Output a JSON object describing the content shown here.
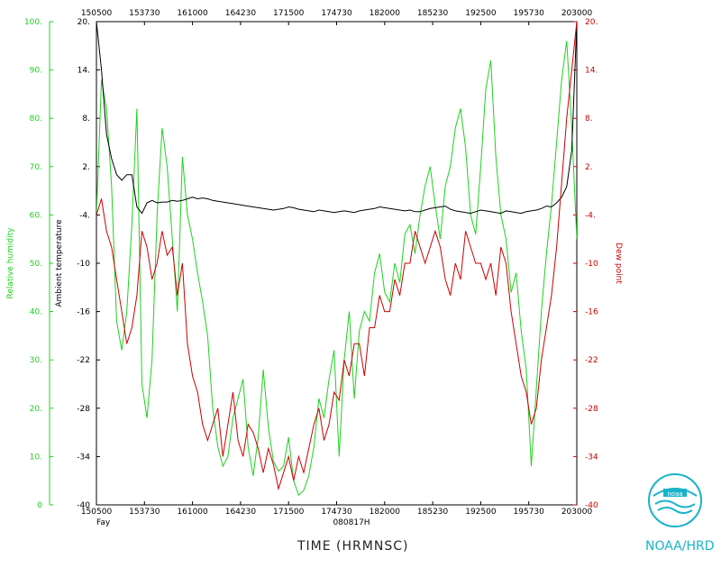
{
  "chart_data": {
    "type": "line",
    "xlabel": "TIME (HRMNSC)",
    "date_label": "080817H",
    "storm_label": "Fay",
    "credit": "NOAA/HRD",
    "x_ticks": [
      "150500",
      "153730",
      "161000",
      "164230",
      "171500",
      "174730",
      "182000",
      "185230",
      "192500",
      "195730",
      "203000"
    ],
    "left_axis": {
      "label": "Relative humidity",
      "range": [
        0,
        100
      ],
      "ticks": [
        "0",
        "10.",
        "20.",
        "30.",
        "40.",
        "50.",
        "60.",
        "70.",
        "80.",
        "90.",
        "100."
      ],
      "color": "#1ed21e"
    },
    "mid_axis": {
      "label": "Ambient temperature",
      "range": [
        -40,
        20
      ],
      "ticks": [
        "-40",
        "-34",
        "-28",
        "-22",
        "-16",
        "-10",
        "-4.",
        "2.",
        "8.",
        "14.",
        "20."
      ],
      "color": "#000000"
    },
    "right_axis": {
      "label": "Dew point",
      "range": [
        -40,
        20
      ],
      "ticks": [
        "-40",
        "-34",
        "-28",
        "-22",
        "-16",
        "-10",
        "-4.",
        "2.",
        "8.",
        "14.",
        "20."
      ],
      "color": "#cc0000"
    },
    "series": [
      {
        "name": "Relative humidity",
        "axis": "left",
        "color": "#1ed21e",
        "values": [
          60,
          88,
          82,
          66,
          38,
          32,
          40,
          58,
          82,
          25,
          18,
          30,
          60,
          78,
          70,
          55,
          40,
          72,
          60,
          55,
          48,
          42,
          35,
          20,
          12,
          8,
          10,
          18,
          22,
          26,
          12,
          6,
          14,
          28,
          16,
          9,
          7,
          8,
          14,
          5,
          2,
          3,
          6,
          12,
          22,
          18,
          26,
          32,
          10,
          30,
          40,
          22,
          36,
          40,
          38,
          48,
          52,
          44,
          42,
          50,
          46,
          56,
          58,
          52,
          60,
          66,
          70,
          62,
          55,
          66,
          70,
          78,
          82,
          74,
          60,
          56,
          70,
          86,
          92,
          72,
          60,
          55,
          44,
          48,
          36,
          28,
          8,
          24,
          40,
          52,
          62,
          75,
          88,
          96,
          78,
          55
        ]
      },
      {
        "name": "Ambient temperature",
        "axis": "mid",
        "color": "#000000",
        "values": [
          20,
          14,
          6,
          3,
          1,
          0.3,
          1,
          1,
          -3,
          -3.8,
          -2.5,
          -2.2,
          -2.5,
          -2.4,
          -2.4,
          -2.2,
          -2.3,
          -2.2,
          -2.0,
          -1.8,
          -2.0,
          -1.9,
          -2.0,
          -2.2,
          -2.3,
          -2.4,
          -2.5,
          -2.6,
          -2.7,
          -2.8,
          -2.9,
          -3.0,
          -3.1,
          -3.2,
          -3.3,
          -3.4,
          -3.3,
          -3.2,
          -3.0,
          -3.1,
          -3.3,
          -3.4,
          -3.5,
          -3.6,
          -3.4,
          -3.5,
          -3.6,
          -3.7,
          -3.6,
          -3.5,
          -3.6,
          -3.7,
          -3.5,
          -3.4,
          -3.3,
          -3.2,
          -3.0,
          -3.1,
          -3.2,
          -3.3,
          -3.4,
          -3.5,
          -3.4,
          -3.6,
          -3.6,
          -3.4,
          -3.2,
          -3.1,
          -3.0,
          -2.9,
          -3.3,
          -3.5,
          -3.6,
          -3.7,
          -3.8,
          -3.6,
          -3.4,
          -3.5,
          -3.6,
          -3.7,
          -3.8,
          -3.5,
          -3.6,
          -3.7,
          -3.8,
          -3.6,
          -3.5,
          -3.4,
          -3.2,
          -2.9,
          -3.0,
          -2.5,
          -1.8,
          -0.5,
          4,
          20
        ]
      },
      {
        "name": "Dew point",
        "axis": "right",
        "color": "#cc0000",
        "values": [
          -4,
          -2,
          -6,
          -8,
          -12,
          -16,
          -20,
          -18,
          -14,
          -6,
          -8,
          -12,
          -10,
          -6,
          -9,
          -8,
          -14,
          -10,
          -20,
          -24,
          -26,
          -30,
          -32,
          -30,
          -28,
          -34,
          -30,
          -26,
          -32,
          -34,
          -30,
          -31,
          -33,
          -36,
          -33,
          -35,
          -38,
          -36,
          -34,
          -37,
          -34,
          -36,
          -33,
          -30,
          -28,
          -32,
          -30,
          -26,
          -27,
          -22,
          -24,
          -20,
          -20,
          -24,
          -18,
          -18,
          -14,
          -16,
          -16,
          -12,
          -14,
          -10,
          -10,
          -6,
          -8,
          -10,
          -8,
          -6,
          -8,
          -12,
          -14,
          -10,
          -12,
          -6,
          -8,
          -10,
          -10,
          -12,
          -10,
          -14,
          -8,
          -10,
          -16,
          -20,
          -24,
          -26,
          -30,
          -28,
          -22,
          -18,
          -14,
          -8,
          0,
          8,
          14,
          20
        ]
      }
    ]
  }
}
